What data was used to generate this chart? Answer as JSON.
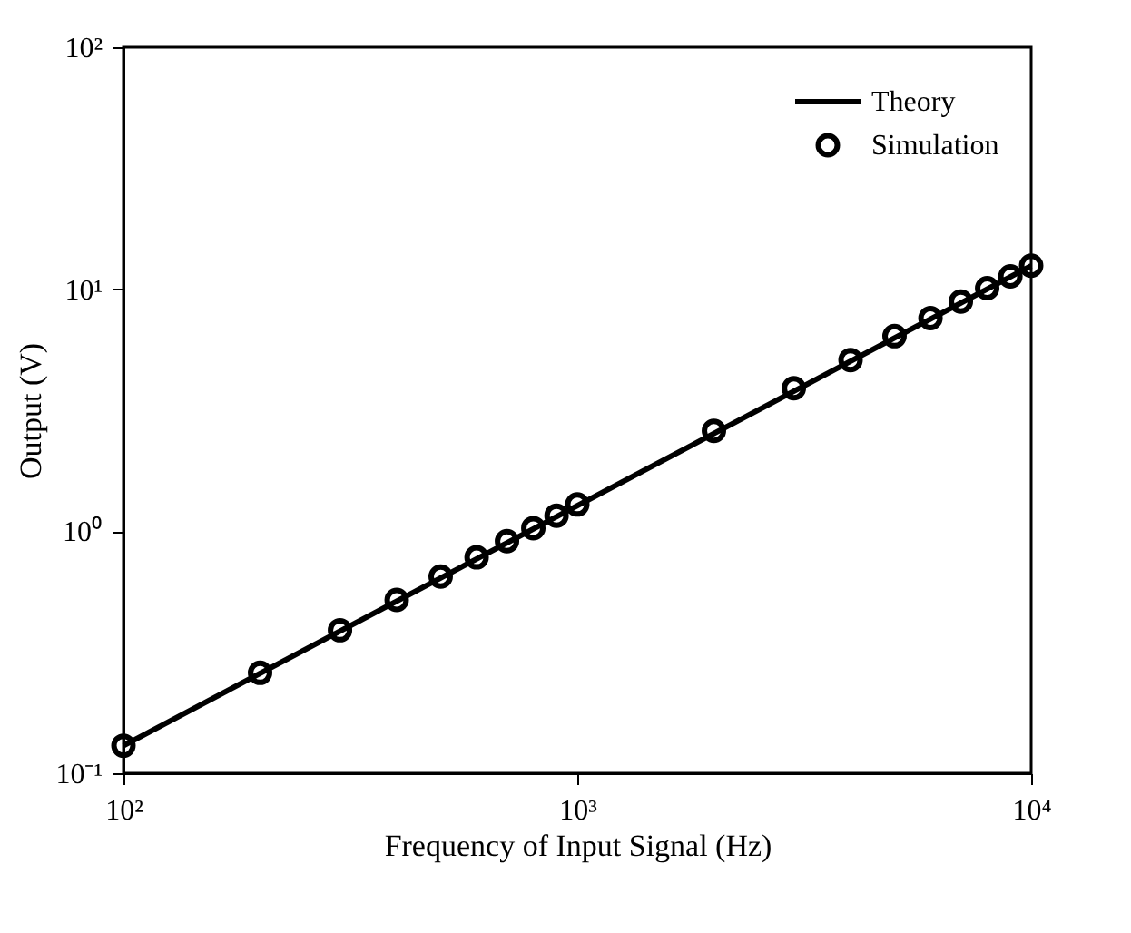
{
  "chart_data": {
    "type": "scatter",
    "xlabel": "Frequency of Input Signal (Hz)",
    "ylabel": "Output (V)",
    "log": "xy",
    "grid": false,
    "legend": "top right",
    "xlim": [
      100,
      10000
    ],
    "xticks": [
      {
        "value": 100,
        "label": "10²"
      },
      {
        "value": 1000,
        "label": "10³"
      },
      {
        "value": 10000,
        "label": "10⁴"
      }
    ],
    "ylim": [
      0.1,
      100
    ],
    "yticks": [
      {
        "value": 0.1,
        "label": "10⁻¹"
      },
      {
        "value": 1,
        "label": "10⁰"
      },
      {
        "value": 10,
        "label": "10¹"
      },
      {
        "value": 100,
        "label": "10²"
      }
    ],
    "series": [
      {
        "name": "Theory",
        "type": "line",
        "color": "#000000",
        "line_style": "solid",
        "marker": "none",
        "x": [
          100,
          10000
        ],
        "values": [
          0.13,
          12.5
        ]
      },
      {
        "name": "Simulation",
        "type": "scatter",
        "color": "#000000",
        "marker": "circle",
        "x": [
          100,
          200,
          300,
          400,
          500,
          600,
          700,
          800,
          900,
          1000,
          2000,
          3000,
          4000,
          5000,
          6000,
          7000,
          8000,
          9000,
          10000
        ],
        "values": [
          0.13,
          0.26,
          0.39,
          0.52,
          0.65,
          0.78,
          0.91,
          1.03,
          1.16,
          1.29,
          2.6,
          3.9,
          5.1,
          6.4,
          7.6,
          8.9,
          10.1,
          11.3,
          12.5
        ]
      }
    ]
  }
}
